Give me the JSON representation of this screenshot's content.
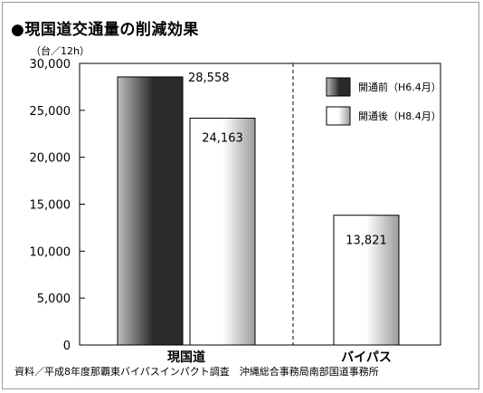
{
  "title": "●現国道交通量の削減効果",
  "unit": "（台／12h）",
  "source": "資料／平成8年度那覇東バイパスインパクト調査　沖縄総合事務局南部国道事務所",
  "chart_data": {
    "type": "bar",
    "categories": [
      "現国道",
      "バイパス"
    ],
    "series": [
      {
        "name": "開通前（H6.4月）",
        "values": [
          28558,
          null
        ],
        "labels": [
          "28,558",
          ""
        ]
      },
      {
        "name": "開通後（H8.4月）",
        "values": [
          24163,
          13821
        ],
        "labels": [
          "24,163",
          "13,821"
        ]
      }
    ],
    "ylim": [
      0,
      30000
    ],
    "yticks": [
      0,
      5000,
      10000,
      15000,
      20000,
      25000,
      30000
    ],
    "ytick_labels": [
      "0",
      "5,000",
      "10,000",
      "15,000",
      "20,000",
      "25,000",
      "30,000"
    ],
    "legend_position": "top-right",
    "colors": {
      "before_dark": "#2a2a2a",
      "before_light": "#bdbdbd",
      "after_light": "#ffffff",
      "after_mid": "#9c9c9c"
    },
    "grid": false
  }
}
